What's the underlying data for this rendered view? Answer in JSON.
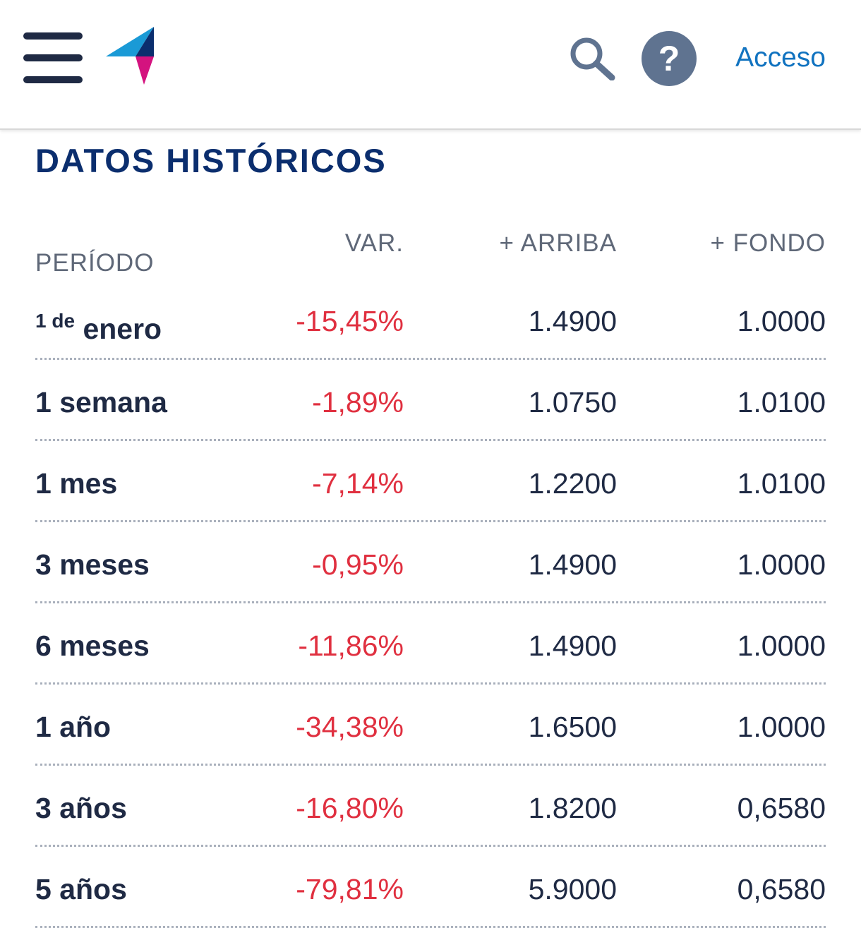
{
  "header": {
    "menu_icon": "hamburger-menu-icon",
    "logo_icon": "paper-plane-logo-icon",
    "search_icon": "search-icon",
    "help_label": "?",
    "login_label": "Acceso"
  },
  "section": {
    "title": "DATOS HISTÓRICOS"
  },
  "table": {
    "headers": {
      "period": "PERÍODO",
      "var": "VAR.",
      "high": "+ ARRIBA",
      "low": "+ FONDO"
    },
    "rows": [
      {
        "period_small": "1 de",
        "period": "enero",
        "var": "-15,45%",
        "high": "1.4900",
        "low": "1.0000"
      },
      {
        "period_small": "",
        "period": "1 semana",
        "var": "-1,89%",
        "high": "1.0750",
        "low": "1.0100"
      },
      {
        "period_small": "",
        "period": "1 mes",
        "var": "-7,14%",
        "high": "1.2200",
        "low": "1.0100"
      },
      {
        "period_small": "",
        "period": "3 meses",
        "var": "-0,95%",
        "high": "1.4900",
        "low": "1.0000"
      },
      {
        "period_small": "",
        "period": "6 meses",
        "var": "-11,86%",
        "high": "1.4900",
        "low": "1.0000"
      },
      {
        "period_small": "",
        "period": "1 año",
        "var": "-34,38%",
        "high": "1.6500",
        "low": "1.0000"
      },
      {
        "period_small": "",
        "period": "3 años",
        "var": "-16,80%",
        "high": "1.8200",
        "low": "0,6580"
      },
      {
        "period_small": "",
        "period": "5 años",
        "var": "-79,81%",
        "high": "5.9000",
        "low": "0,6580"
      }
    ]
  },
  "colors": {
    "title": "#0b2e6e",
    "negative": "#e03040",
    "link": "#1173c0",
    "help_bg": "#5f7390"
  }
}
